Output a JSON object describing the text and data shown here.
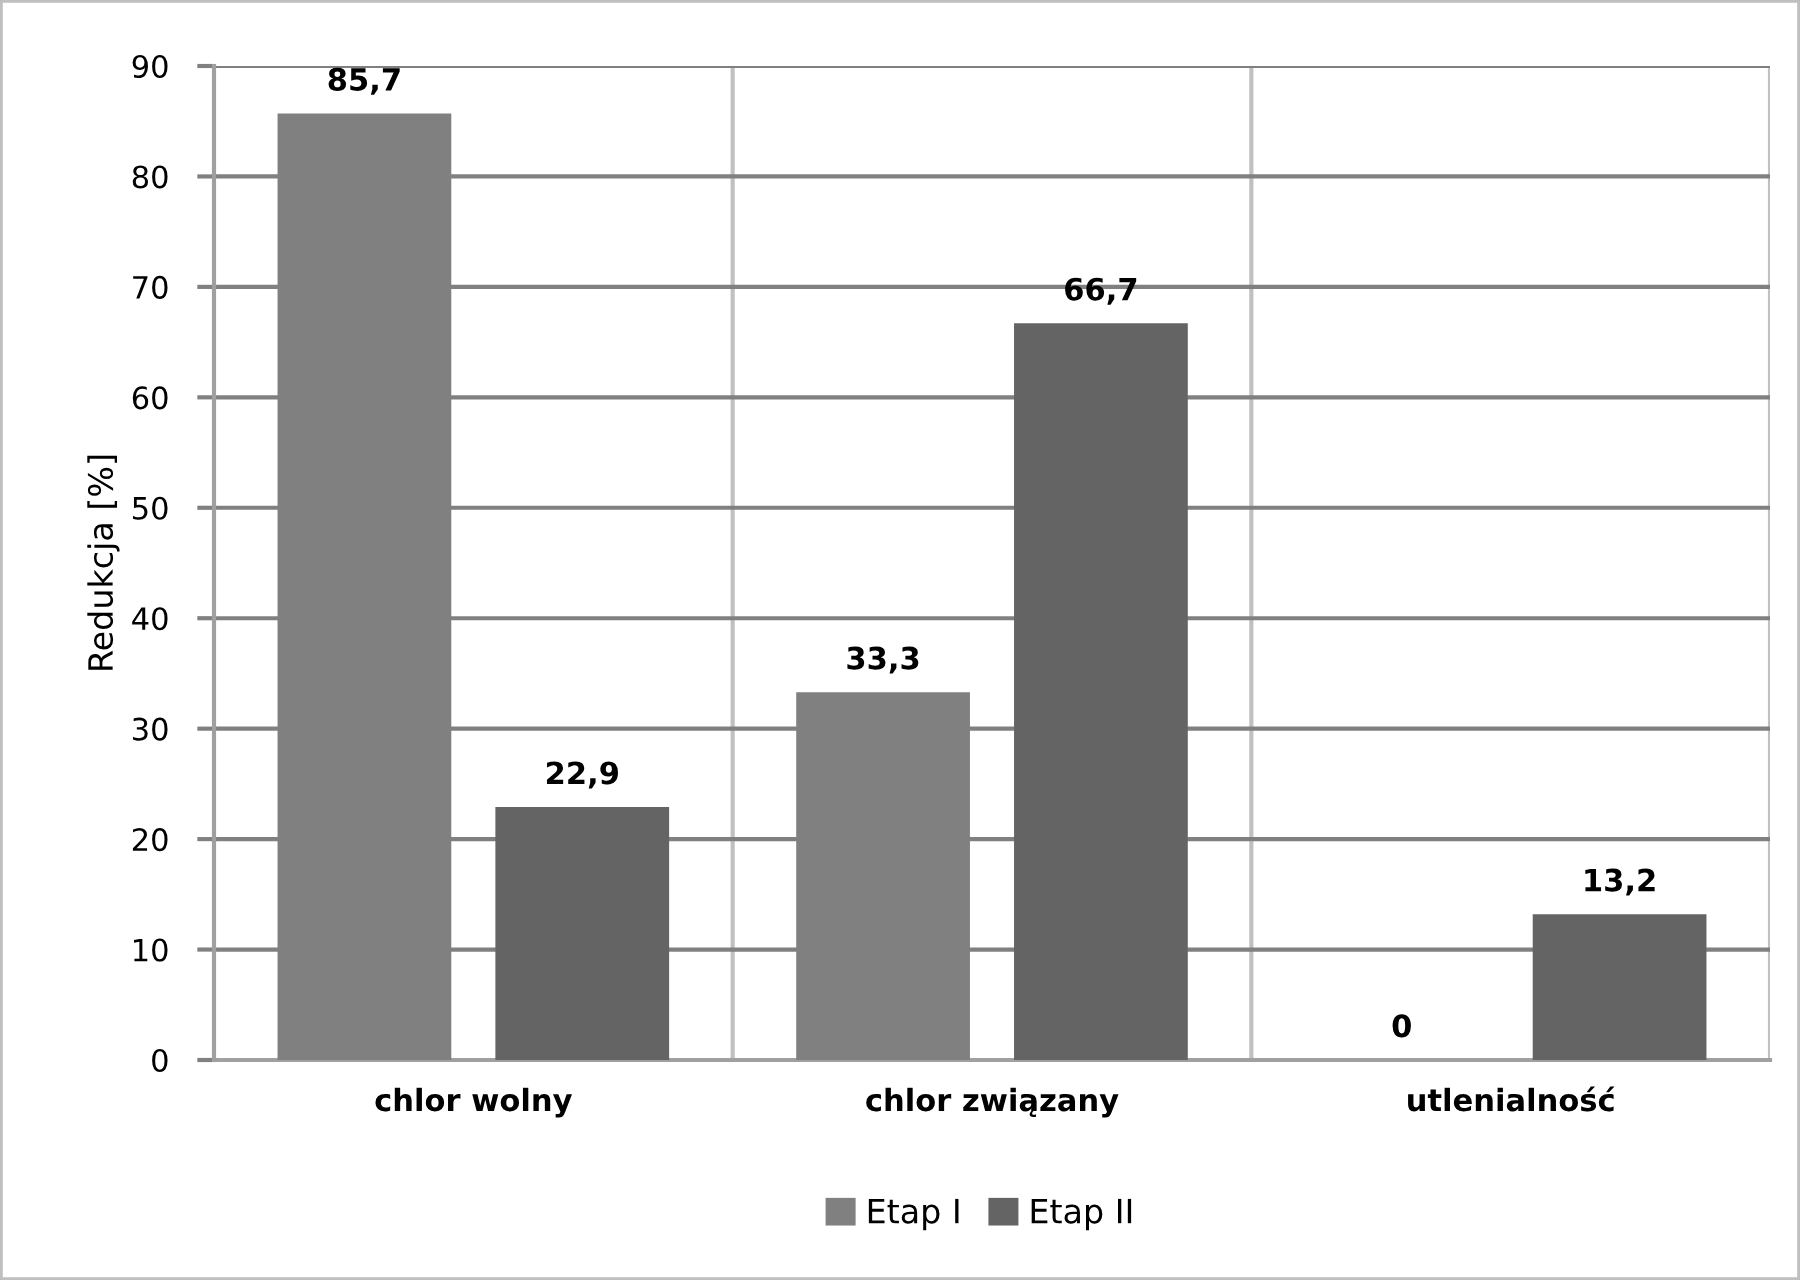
{
  "chart_data": {
    "type": "bar",
    "ylabel": "Redukcja [%]",
    "categories": [
      "chlor wolny",
      "chlor związany",
      "utlenialność"
    ],
    "series": [
      {
        "name": "Etap I",
        "color": "#808080",
        "values": [
          85.7,
          33.3,
          0
        ]
      },
      {
        "name": "Etap II",
        "color": "#646464",
        "values": [
          22.9,
          66.7,
          13.2
        ]
      }
    ],
    "value_labels": [
      [
        "85,7",
        "33,3",
        "0"
      ],
      [
        "22,9",
        "66,7",
        "13,2"
      ]
    ],
    "ylim": [
      0,
      90
    ],
    "yticks": [
      0,
      10,
      20,
      30,
      40,
      50,
      60,
      70,
      80,
      90
    ],
    "grid": true,
    "legend": "bottom"
  }
}
